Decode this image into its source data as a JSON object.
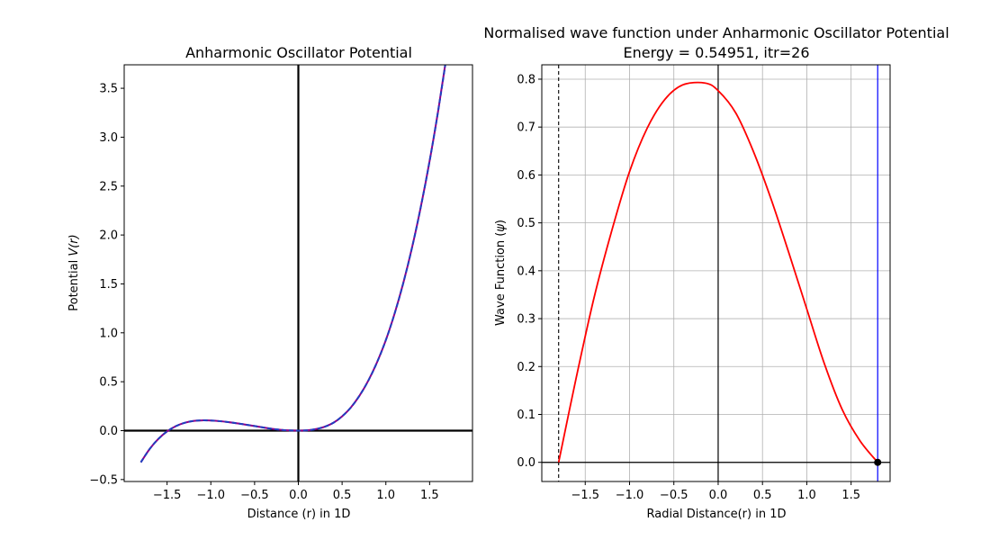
{
  "chart_data": [
    {
      "type": "line",
      "title": "Anharmonic Oscillator Potential",
      "xlabel": "Distance (r) in 1D",
      "ylabel_main": "Potential ",
      "ylabel_italic": "V(r)",
      "xlim": [
        -1.99,
        1.99
      ],
      "ylim": [
        -0.52,
        3.74
      ],
      "xticks": [
        -1.5,
        -1.0,
        -0.5,
        0.0,
        0.5,
        1.0,
        1.5
      ],
      "xtick_labels": [
        "−1.5",
        "−1.0",
        "−0.5",
        "0.0",
        "0.5",
        "1.0",
        "1.5"
      ],
      "yticks": [
        -0.5,
        0.0,
        0.5,
        1.0,
        1.5,
        2.0,
        2.5,
        3.0,
        3.5
      ],
      "ytick_labels": [
        "−0.5",
        "0.0",
        "0.5",
        "1.0",
        "1.5",
        "2.0",
        "2.5",
        "3.0",
        "3.5"
      ],
      "grid": false,
      "series": [
        {
          "color": "#8b008b",
          "style": "solid",
          "x": [
            -1.8,
            -1.7,
            -1.6,
            -1.5,
            -1.4,
            -1.3,
            -1.2,
            -1.1,
            -1.0,
            -0.9,
            -0.8,
            -0.7,
            -0.6,
            -0.5,
            -0.4,
            -0.3,
            -0.2,
            -0.1,
            0.0,
            0.1,
            0.2,
            0.3,
            0.4,
            0.5,
            0.6,
            0.7,
            0.8,
            0.9,
            1.0,
            1.1,
            1.2,
            1.3,
            1.4,
            1.5,
            1.6,
            1.7,
            1.8
          ],
          "y": [
            -0.324,
            -0.189,
            -0.085,
            -0.008,
            0.046,
            0.08,
            0.099,
            0.105,
            0.103,
            0.097,
            0.087,
            0.075,
            0.061,
            0.047,
            0.032,
            0.018,
            0.008,
            0.002,
            0.0,
            0.003,
            0.016,
            0.04,
            0.08,
            0.146,
            0.237,
            0.359,
            0.512,
            0.7,
            0.926,
            1.197,
            1.512,
            1.875,
            2.29,
            2.757,
            3.283,
            3.868,
            4.516
          ]
        },
        {
          "color": "#1f3fbf",
          "style": "dashed",
          "x": [
            -1.8,
            -1.7,
            -1.6,
            -1.5,
            -1.4,
            -1.3,
            -1.2,
            -1.1,
            -1.0,
            -0.9,
            -0.8,
            -0.7,
            -0.6,
            -0.5,
            -0.4,
            -0.3,
            -0.2,
            -0.1,
            0.0,
            0.1,
            0.2,
            0.3,
            0.4,
            0.5,
            0.6,
            0.7,
            0.8,
            0.9,
            1.0,
            1.1,
            1.2,
            1.3,
            1.4,
            1.5,
            1.6,
            1.7,
            1.8
          ],
          "y": [
            -0.324,
            -0.189,
            -0.085,
            -0.008,
            0.046,
            0.08,
            0.099,
            0.105,
            0.103,
            0.097,
            0.087,
            0.075,
            0.061,
            0.047,
            0.032,
            0.018,
            0.008,
            0.002,
            0.0,
            0.003,
            0.016,
            0.04,
            0.08,
            0.146,
            0.237,
            0.359,
            0.512,
            0.7,
            0.926,
            1.197,
            1.512,
            1.875,
            2.29,
            2.757,
            3.283,
            3.868,
            4.516
          ]
        }
      ],
      "hlines": [
        0.0
      ],
      "vlines": [
        0.0
      ]
    },
    {
      "type": "line",
      "title_line1": "Normalised wave function under Anharmonic Oscillator Potential",
      "title_line2": "Energy =  0.54951, itr=26",
      "xlabel": "Radial Distance(r) in 1D",
      "ylabel_main": "Wave Function (",
      "ylabel_italic": "ψ",
      "ylabel_end": ")",
      "xlim": [
        -1.99,
        1.94
      ],
      "ylim": [
        -0.04,
        0.83
      ],
      "xticks": [
        -1.5,
        -1.0,
        -0.5,
        0.0,
        0.5,
        1.0,
        1.5
      ],
      "xtick_labels": [
        "−1.5",
        "−1.0",
        "−0.5",
        "0.0",
        "0.5",
        "1.0",
        "1.5"
      ],
      "yticks": [
        0.0,
        0.1,
        0.2,
        0.3,
        0.4,
        0.5,
        0.6,
        0.7,
        0.8
      ],
      "ytick_labels": [
        "0.0",
        "0.1",
        "0.2",
        "0.3",
        "0.4",
        "0.5",
        "0.6",
        "0.7",
        "0.8"
      ],
      "grid": true,
      "series": [
        {
          "color": "#ff0000",
          "style": "solid",
          "x": [
            -1.8,
            -1.6,
            -1.4,
            -1.2,
            -1.0,
            -0.8,
            -0.6,
            -0.4,
            -0.15,
            0.0,
            0.2,
            0.4,
            0.6,
            0.8,
            1.0,
            1.2,
            1.4,
            1.6,
            1.8
          ],
          "y": [
            0.0,
            0.178,
            0.344,
            0.484,
            0.607,
            0.698,
            0.758,
            0.788,
            0.792,
            0.776,
            0.729,
            0.648,
            0.548,
            0.436,
            0.32,
            0.205,
            0.11,
            0.045,
            0.0
          ]
        }
      ],
      "hlines": [
        0.0
      ],
      "vlines_solid": [
        0.0
      ],
      "vline_dashed": -1.8,
      "vline_blue": 1.8,
      "blue_color": "#0000ff",
      "endpoint": [
        1.8,
        0.0
      ]
    }
  ]
}
